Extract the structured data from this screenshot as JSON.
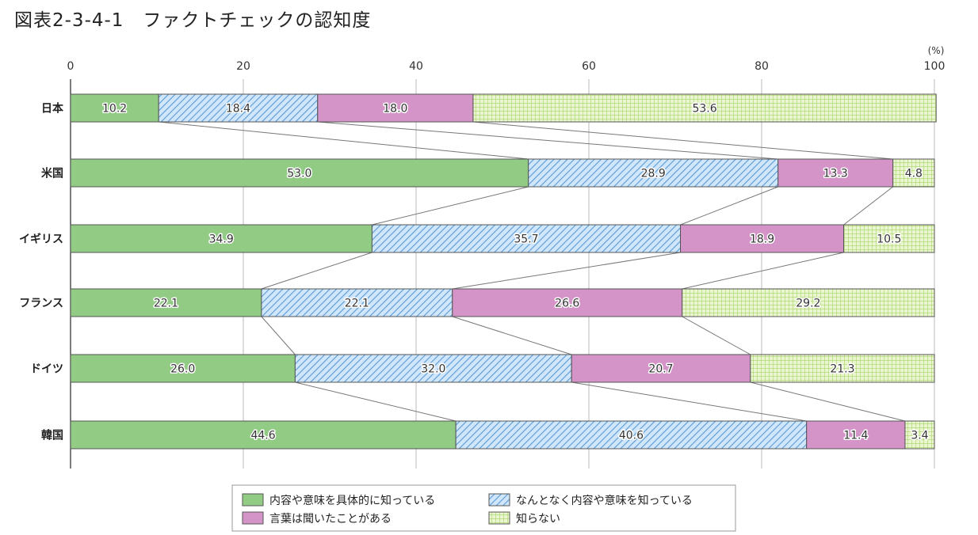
{
  "page": {
    "title": "図表2-3-4-1　ファクトチェックの認知度"
  },
  "chart_data": {
    "type": "bar",
    "orientation": "horizontal",
    "stacked": true,
    "unit_label": "(%)",
    "xlim": [
      0,
      100
    ],
    "x_ticks": [
      0,
      20,
      40,
      60,
      80,
      100
    ],
    "categories": [
      "日本",
      "米国",
      "イギリス",
      "フランス",
      "ドイツ",
      "韓国"
    ],
    "series": [
      {
        "name": "内容や意味を具体的に知っている",
        "color": "#92cc84",
        "pattern": "solid",
        "values": [
          10.2,
          53.0,
          34.9,
          22.1,
          26.0,
          44.6
        ]
      },
      {
        "name": "なんとなく内容や意味を知っている",
        "color": "#a9d3f5",
        "pattern": "diagonal-hatch",
        "values": [
          18.4,
          28.9,
          35.7,
          22.1,
          32.0,
          40.6
        ]
      },
      {
        "name": "言葉は聞いたことがある",
        "color": "#d494c8",
        "pattern": "solid",
        "values": [
          18.0,
          13.3,
          18.9,
          26.6,
          20.7,
          11.4
        ]
      },
      {
        "name": "知らない",
        "color": "#d9efad",
        "pattern": "grid",
        "values": [
          53.6,
          4.8,
          10.5,
          29.2,
          21.3,
          3.4
        ]
      }
    ],
    "value_labels": [
      [
        "10.2",
        "18.4",
        "18.0",
        "53.6"
      ],
      [
        "53.0",
        "28.9",
        "13.3",
        "4.8"
      ],
      [
        "34.9",
        "35.7",
        "18.9",
        "10.5"
      ],
      [
        "22.1",
        "22.1",
        "26.6",
        "29.2"
      ],
      [
        "26.0",
        "32.0",
        "20.7",
        "21.3"
      ],
      [
        "44.6",
        "40.6",
        "11.4",
        "3.4"
      ]
    ],
    "connector_lines": true,
    "grid": true,
    "legend_position": "bottom"
  }
}
